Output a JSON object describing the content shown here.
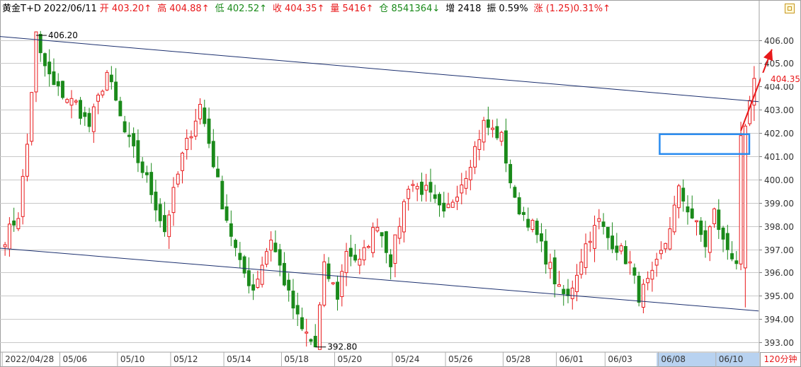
{
  "header": {
    "title": "黄金T+D",
    "date": "2022/06/11",
    "open_label": "开",
    "open_value": "403.20↑",
    "high_label": "高",
    "high_value": "404.88↑",
    "low_label": "低",
    "low_value": "402.52↑",
    "close_label": "收",
    "close_value": "404.35↑",
    "volume_label": "量",
    "volume_value": "5416↑",
    "position_label": "仓",
    "position_value": "8541364↓",
    "increase_label": "增",
    "increase_value": "2418",
    "amplitude_label": "振",
    "amplitude_value": "0.59%",
    "change_label": "涨",
    "change_value": "(1.25)0.31%↑"
  },
  "period_button": {
    "label": "120分钟"
  },
  "icons": {
    "settings": "settings-square-icon"
  },
  "colors": {
    "up": "#e8191b",
    "down": "#1a8a1a",
    "grid": "#c8c8c8",
    "trendline": "#1b2f6e",
    "annotation_box": "#2a8cf0",
    "arrow": "#e8191b",
    "highlight_axis": "#b8d2f0"
  },
  "chart_data": {
    "type": "candlestick",
    "ylim": [
      392.7,
      406.9
    ],
    "y_ticks": [
      393,
      394,
      395,
      396,
      397,
      398,
      399,
      400,
      401,
      402,
      403,
      404,
      405,
      406
    ],
    "y_tick_labels": [
      "393.00",
      "394.00",
      "395.00",
      "396.00",
      "397.00",
      "398.00",
      "399.00",
      "400.00",
      "401.00",
      "402.00",
      "403.00",
      "404.00",
      "405.00",
      "406.00"
    ],
    "x_labels": [
      "2022/04/28",
      "05/06",
      "05/10",
      "05/12",
      "05/14",
      "05/18",
      "05/20",
      "05/24",
      "05/26",
      "05/28",
      "06/01",
      "06/03",
      "06/08",
      "06/10"
    ],
    "x_label_index": [
      0,
      13,
      26,
      38,
      50,
      63,
      75,
      88,
      100,
      113,
      125,
      136,
      148,
      161
    ],
    "candle_count": 170,
    "last_price_label": "404.35",
    "last_price": 404.35,
    "annotations": [
      {
        "text": "406.20",
        "index": 7,
        "value": 406.2
      },
      {
        "text": "392.80",
        "index": 70,
        "value": 392.8
      }
    ],
    "trendlines": [
      {
        "from_index": 0,
        "from": 406.15,
        "to_index": 170,
        "to": 403.35
      },
      {
        "from_index": 0,
        "from": 397.05,
        "to_index": 170,
        "to": 394.35
      }
    ],
    "box_range": {
      "from_index": 148,
      "to_index": 170,
      "low": 401.1,
      "high": 401.95
    },
    "arrow": {
      "from_index": 166,
      "from": 402.1,
      "to_index": 173,
      "to": 405.6
    },
    "anchors": [
      [
        0,
        397.5
      ],
      [
        3,
        398.5
      ],
      [
        5,
        401.5
      ],
      [
        7,
        406.2
      ],
      [
        8,
        405.3
      ],
      [
        11,
        404.0
      ],
      [
        16,
        403.2
      ],
      [
        19,
        402.3
      ],
      [
        23,
        404.6
      ],
      [
        27,
        402.0
      ],
      [
        32,
        400.0
      ],
      [
        36,
        397.8
      ],
      [
        40,
        401.0
      ],
      [
        44,
        403.2
      ],
      [
        46,
        401.6
      ],
      [
        49,
        399.0
      ],
      [
        53,
        396.3
      ],
      [
        56,
        395.3
      ],
      [
        60,
        397.5
      ],
      [
        64,
        395.0
      ],
      [
        67,
        393.5
      ],
      [
        70,
        392.8
      ],
      [
        72,
        396.2
      ],
      [
        75,
        395.0
      ],
      [
        77,
        397.0
      ],
      [
        80,
        396.4
      ],
      [
        84,
        398.2
      ],
      [
        87,
        396.5
      ],
      [
        91,
        399.8
      ],
      [
        95,
        399.5
      ],
      [
        99,
        398.4
      ],
      [
        104,
        400.3
      ],
      [
        108,
        402.4
      ],
      [
        112,
        401.8
      ],
      [
        115,
        399.0
      ],
      [
        119,
        398.0
      ],
      [
        123,
        396.2
      ],
      [
        125,
        395.2
      ],
      [
        127,
        394.9
      ],
      [
        131,
        397.2
      ],
      [
        134,
        398.2
      ],
      [
        136,
        397.5
      ],
      [
        139,
        396.9
      ],
      [
        141,
        396.3
      ],
      [
        143,
        395.0
      ],
      [
        146,
        395.8
      ],
      [
        149,
        397.3
      ],
      [
        152,
        399.5
      ],
      [
        155,
        398.4
      ],
      [
        158,
        397.2
      ],
      [
        160,
        398.6
      ],
      [
        162,
        397.3
      ],
      [
        165,
        396.5
      ],
      [
        166,
        401.6
      ],
      [
        168,
        403.4
      ],
      [
        169,
        404.35
      ]
    ]
  }
}
